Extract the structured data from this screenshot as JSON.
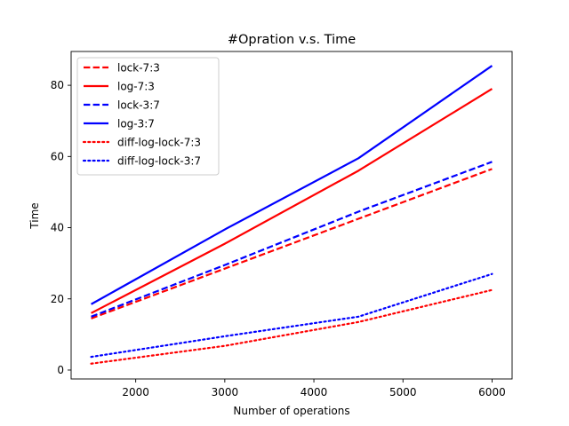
{
  "chart_data": {
    "type": "line",
    "title": "#Opration v.s. Time",
    "xlabel": "Number of operations",
    "ylabel": "Time",
    "xlim": [
      1275,
      6225
    ],
    "ylim": [
      -2.5,
      89.5
    ],
    "xticks": [
      2000,
      3000,
      4000,
      5000,
      6000
    ],
    "yticks": [
      0,
      20,
      40,
      60,
      80
    ],
    "grid": false,
    "legend_position": "upper-left",
    "series": [
      {
        "name": "lock-7:3",
        "color": "#ff0000",
        "style": "dashed",
        "x": [
          1500,
          3000,
          4500,
          6000
        ],
        "y": [
          14.5,
          28.5,
          42.5,
          56.5
        ]
      },
      {
        "name": "log-7:3",
        "color": "#ff0000",
        "style": "solid",
        "x": [
          1500,
          3000,
          4500,
          6000
        ],
        "y": [
          16.0,
          35.5,
          56.0,
          79.0
        ]
      },
      {
        "name": "lock-3:7",
        "color": "#0000ff",
        "style": "dashed",
        "x": [
          1500,
          3000,
          4500,
          6000
        ],
        "y": [
          15.0,
          29.5,
          44.5,
          58.5
        ]
      },
      {
        "name": "log-3:7",
        "color": "#0000ff",
        "style": "solid",
        "x": [
          1500,
          3000,
          4500,
          6000
        ],
        "y": [
          18.5,
          39.5,
          59.5,
          85.5
        ]
      },
      {
        "name": "diff-log-lock-7:3",
        "color": "#ff0000",
        "style": "dotted",
        "x": [
          1500,
          3000,
          4500,
          6000
        ],
        "y": [
          1.8,
          6.8,
          13.5,
          22.5
        ]
      },
      {
        "name": "diff-log-lock-3:7",
        "color": "#0000ff",
        "style": "dotted",
        "x": [
          1500,
          3000,
          4500,
          6000
        ],
        "y": [
          3.7,
          9.5,
          15.0,
          27.0
        ]
      }
    ]
  }
}
